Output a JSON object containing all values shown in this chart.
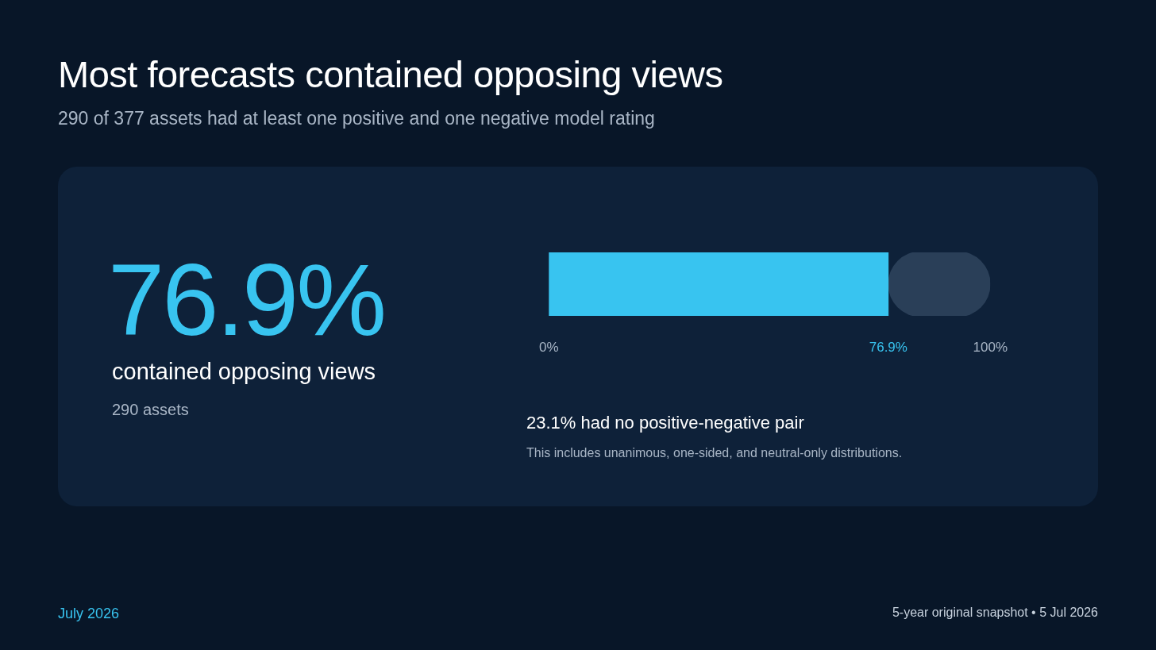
{
  "chart_data": {
    "type": "bar",
    "orientation": "horizontal",
    "stacked": true,
    "title": "Most forecasts contained opposing views",
    "subtitle": "290 of 377 assets had at least one positive and one negative model rating",
    "categories": [
      null
    ],
    "series": [
      {
        "color": "#38c4f0",
        "values": [
          76.9
        ]
      },
      {
        "color": "#2a3f58",
        "values": [
          23.1
        ]
      }
    ],
    "xlim": [
      0,
      100
    ],
    "xticks": [
      {
        "value": 0,
        "label": "0%"
      },
      {
        "value": 76.9,
        "label": "76.9%"
      },
      {
        "value": 100,
        "label": "100%"
      }
    ],
    "tick_labels": "x",
    "grid": false,
    "legend": false,
    "annotations": [
      "76.9%",
      "contained opposing views",
      "290 assets",
      "23.1% had no positive-negative pair",
      "This includes unanimous, one-sided, and neutral-only distributions.",
      "July 2026",
      "5-year original snapshot • 5 Jul 2026"
    ]
  }
}
